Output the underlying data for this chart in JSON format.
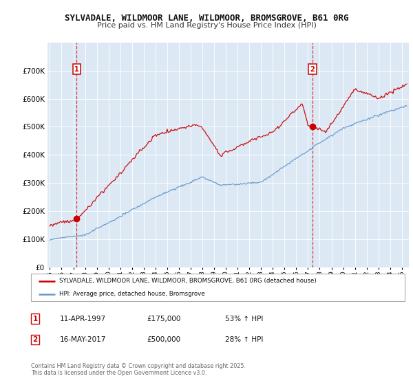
{
  "title_line1": "SYLVADALE, WILDMOOR LANE, WILDMOOR, BROMSGROVE, B61 0RG",
  "title_line2": "Price paid vs. HM Land Registry's House Price Index (HPI)",
  "bg_color": "#dce9f5",
  "red_line_color": "#cc0000",
  "blue_line_color": "#6699cc",
  "sale1_value": 175000,
  "sale2_value": 500000,
  "legend_label_red": "SYLVADALE, WILDMOOR LANE, WILDMOOR, BROMSGROVE, B61 0RG (detached house)",
  "legend_label_blue": "HPI: Average price, detached house, Bromsgrove",
  "annotation1_label": "1",
  "annotation1_date": "11-APR-1997",
  "annotation1_price": "£175,000",
  "annotation1_hpi": "53% ↑ HPI",
  "annotation2_label": "2",
  "annotation2_date": "16-MAY-2017",
  "annotation2_price": "£500,000",
  "annotation2_hpi": "28% ↑ HPI",
  "footer": "Contains HM Land Registry data © Crown copyright and database right 2025.\nThis data is licensed under the Open Government Licence v3.0.",
  "ylim_max": 800000,
  "x_start_year": 1995,
  "x_end_year": 2025,
  "sale1_x": 1997.29,
  "sale2_x": 2017.37
}
